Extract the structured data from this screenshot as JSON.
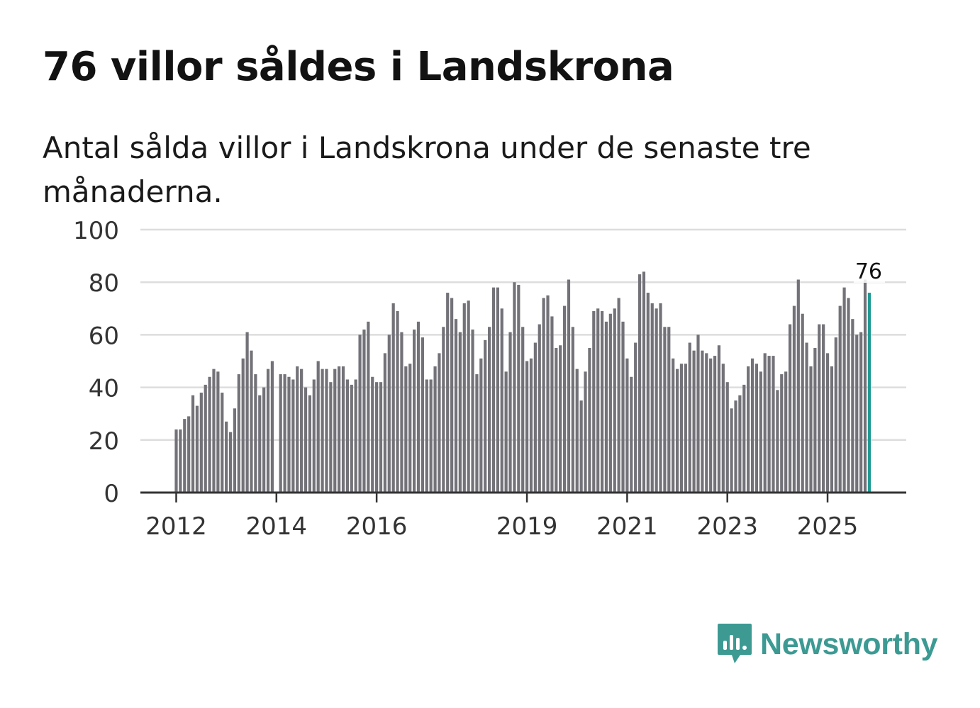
{
  "header": {
    "title": "76 villor såldes i Landskrona",
    "subtitle": "Antal sålda villor i Landskrona under de senaste tre månaderna."
  },
  "brand": {
    "name": "Newsworthy",
    "icon": "newsworthy-logo-icon"
  },
  "colors": {
    "bar": "#737278",
    "highlight": "#1f9a93",
    "grid": "#dddddd",
    "axis": "#333333",
    "brand": "#3c9a93"
  },
  "chart_data": {
    "type": "bar",
    "title": "76 villor såldes i Landskrona",
    "xlabel": "",
    "ylabel": "",
    "ylim": [
      0,
      100
    ],
    "yticks": [
      0,
      20,
      40,
      60,
      80,
      100
    ],
    "grid": true,
    "x_tick_labels": [
      {
        "label": "2012",
        "index": 0
      },
      {
        "label": "2014",
        "index": 24
      },
      {
        "label": "2016",
        "index": 48
      },
      {
        "label": "2019",
        "index": 84
      },
      {
        "label": "2021",
        "index": 108
      },
      {
        "label": "2023",
        "index": 132
      },
      {
        "label": "2025",
        "index": 156
      }
    ],
    "series": [
      {
        "name": "Antal sålda villor (rullande tre månader)",
        "start": "2012-01",
        "values": [
          24,
          24,
          28,
          29,
          37,
          33,
          38,
          41,
          44,
          47,
          46,
          38,
          27,
          23,
          32,
          45,
          51,
          61,
          54,
          45,
          37,
          40,
          47,
          50,
          null,
          45,
          45,
          44,
          43,
          48,
          47,
          40,
          37,
          43,
          50,
          47,
          47,
          42,
          47,
          48,
          48,
          43,
          41,
          43,
          60,
          62,
          65,
          44,
          42,
          42,
          53,
          60,
          72,
          69,
          61,
          48,
          49,
          62,
          65,
          59,
          43,
          43,
          48,
          53,
          63,
          76,
          74,
          66,
          61,
          72,
          73,
          62,
          45,
          51,
          58,
          63,
          78,
          78,
          70,
          46,
          61,
          80,
          79,
          63,
          50,
          51,
          57,
          64,
          74,
          75,
          67,
          55,
          56,
          71,
          81,
          63,
          47,
          35,
          46,
          55,
          69,
          70,
          69,
          65,
          68,
          70,
          74,
          65,
          51,
          44,
          57,
          83,
          84,
          76,
          72,
          70,
          72,
          63,
          63,
          51,
          47,
          49,
          49,
          57,
          54,
          60,
          54,
          53,
          51,
          52,
          56,
          49,
          42,
          32,
          35,
          37,
          41,
          48,
          51,
          49,
          46,
          53,
          52,
          52,
          39,
          45,
          46,
          64,
          71,
          81,
          68,
          57,
          48,
          55,
          64,
          64,
          53,
          48,
          59,
          71,
          78,
          74,
          66,
          60,
          61,
          81,
          76
        ]
      }
    ],
    "highlight": {
      "index": 166,
      "label": "76",
      "value": 76
    }
  }
}
